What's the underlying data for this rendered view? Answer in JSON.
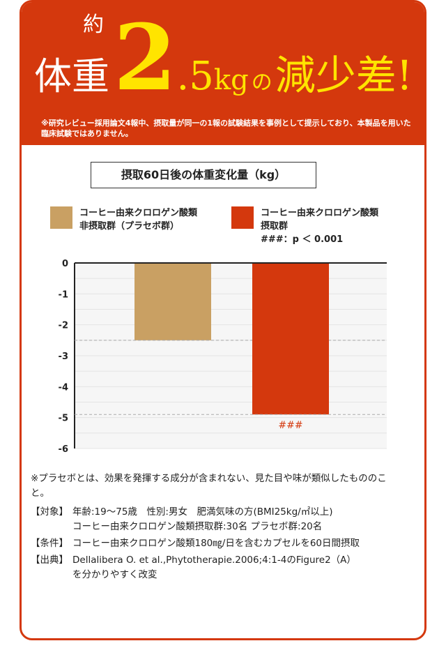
{
  "header": {
    "prefix": "約",
    "subject": "体重",
    "value_int": "2",
    "value_dec": ".5",
    "unit": "kg",
    "particle": "の",
    "headline_end": "減少差!",
    "disclaimer": "※研究レビュー採用論文4報中、摂取量が同一の1報の試験結果を事例として提示しており、本製品を用いた臨床試験ではありません。"
  },
  "colors": {
    "accent": "#d4380d",
    "highlight": "#ffe400",
    "placebo": "#c9a063",
    "treatment": "#d4380d"
  },
  "chart_data": {
    "type": "bar",
    "title": "摂取60日後の体重変化量（kg）",
    "categories": [
      "コーヒー由来クロロゲン酸類非摂取群（プラセボ群）",
      "コーヒー由来クロロゲン酸類摂取群"
    ],
    "series": [
      {
        "name": "コーヒー由来クロロゲン酸類 非摂取群（プラセボ群）",
        "value": -2.5,
        "color": "#c9a063"
      },
      {
        "name": "コーヒー由来クロロゲン酸類 摂取群",
        "value": -4.9,
        "color": "#d4380d",
        "annotation": "###"
      }
    ],
    "legend_line1": [
      "コーヒー由来クロロゲン酸類",
      "コーヒー由来クロロゲン酸類"
    ],
    "legend_line2": [
      "非摂取群（プラセボ群）",
      "摂取群"
    ],
    "significance": "###：p ＜ 0.001",
    "ylim": [
      -6,
      0
    ],
    "yticks": [
      "0",
      "-1",
      "-2",
      "-3",
      "-4",
      "-5",
      "-6"
    ],
    "grid": true,
    "legend_placement": "top"
  },
  "footer": {
    "placebo_note": "※プラセボとは、効果を発揮する成分が含まれない、見た目や味が類似したもののこと。",
    "rows": [
      {
        "label": "【対象】",
        "lines": [
          "年齢:19〜75歳　性別:男女　肥満気味の方(BMI25kg/㎡以上)",
          "コーヒー由来クロロゲン酸類摂取群:30名 プラセボ群:20名"
        ]
      },
      {
        "label": "【条件】",
        "lines": [
          "コーヒー由来クロロゲン酸類180㎎/日を含むカプセルを60日間摂取"
        ]
      },
      {
        "label": "【出典】",
        "lines": [
          "Dellalibera O. et al.,Phytotherapie.2006;4:1-4のFigure2（A）",
          "を分かりやすく改変"
        ]
      }
    ]
  }
}
